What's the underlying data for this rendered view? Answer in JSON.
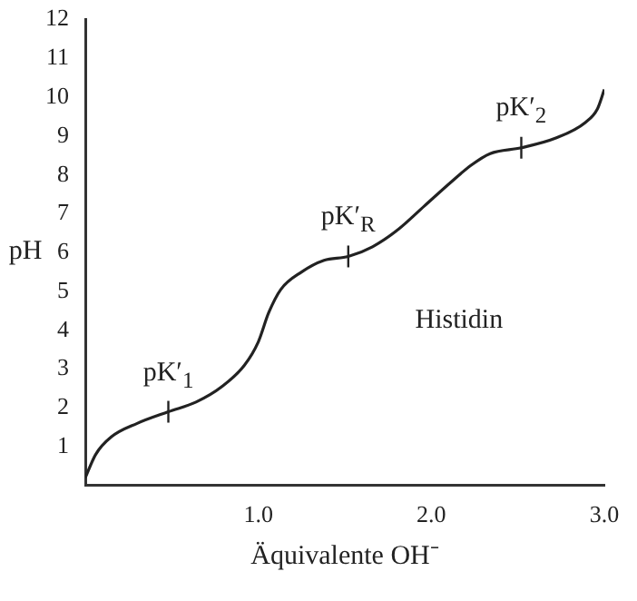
{
  "chart_data": {
    "type": "line",
    "xlabel": "Äquivalente OH⁻",
    "ylabel": "pH",
    "x": [
      0,
      0.06,
      0.15,
      0.3,
      0.48,
      0.64,
      0.79,
      0.92,
      1.0,
      1.06,
      1.13,
      1.25,
      1.38,
      1.52,
      1.66,
      1.81,
      1.96,
      2.11,
      2.23,
      2.34,
      2.52,
      2.72,
      2.89,
      2.96,
      3.0
    ],
    "series": [
      {
        "color": "#222222",
        "values": [
          0.2,
          0.8,
          1.25,
          1.6,
          1.9,
          2.15,
          2.55,
          3.1,
          3.7,
          4.45,
          5.05,
          5.5,
          5.8,
          5.9,
          6.15,
          6.6,
          7.2,
          7.8,
          8.25,
          8.55,
          8.7,
          8.95,
          9.35,
          9.7,
          10.2
        ]
      }
    ],
    "xlim": [
      0,
      3
    ],
    "ylim": [
      0,
      12
    ],
    "xticks": [
      {
        "value": 1,
        "label": "1.0"
      },
      {
        "value": 2,
        "label": "2.0"
      },
      {
        "value": 3,
        "label": "3.0"
      }
    ],
    "yticks": [
      1,
      2,
      3,
      4,
      5,
      6,
      7,
      8,
      9,
      10,
      11,
      12
    ],
    "annotations": [
      {
        "text": "pK′$_{1}$",
        "x": 0.48,
        "y": 1.9
      },
      {
        "text": "pK′$_{R}$",
        "x": 1.52,
        "y": 5.9
      },
      {
        "text": "pK′$_{2}$",
        "x": 2.52,
        "y": 8.7
      },
      "Histidin"
    ],
    "grid": false,
    "legend": false,
    "marker": "none",
    "line_style": "solid"
  }
}
